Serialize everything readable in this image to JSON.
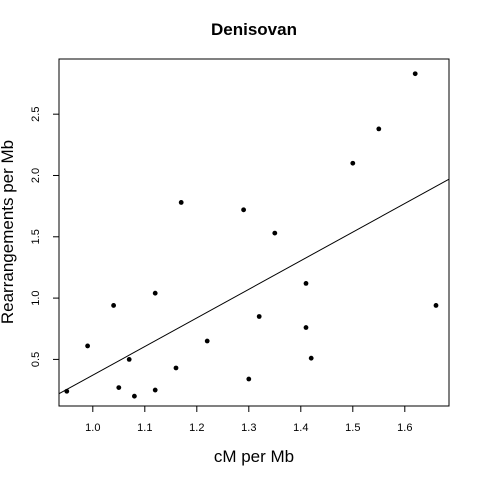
{
  "chart_data": {
    "type": "scatter",
    "title": "Denisovan",
    "xlabel": "cM per Mb",
    "ylabel": "Rearrangements per Mb",
    "xlim": [
      0.935,
      1.685
    ],
    "ylim": [
      0.12,
      2.95
    ],
    "x_ticks": [
      1.0,
      1.1,
      1.2,
      1.3,
      1.4,
      1.5,
      1.6
    ],
    "x_tick_labels": [
      "1.0",
      "1.1",
      "1.2",
      "1.3",
      "1.4",
      "1.5",
      "1.6"
    ],
    "y_ticks": [
      0.5,
      1.0,
      1.5,
      2.0,
      2.5
    ],
    "y_tick_labels": [
      "0.5",
      "1.0",
      "1.5",
      "2.0",
      "2.5"
    ],
    "grid": false,
    "points": [
      {
        "x": 0.95,
        "y": 0.24
      },
      {
        "x": 0.99,
        "y": 0.61
      },
      {
        "x": 1.04,
        "y": 0.94
      },
      {
        "x": 1.05,
        "y": 0.27
      },
      {
        "x": 1.07,
        "y": 0.5
      },
      {
        "x": 1.08,
        "y": 0.2
      },
      {
        "x": 1.12,
        "y": 1.04
      },
      {
        "x": 1.12,
        "y": 0.25
      },
      {
        "x": 1.16,
        "y": 0.43
      },
      {
        "x": 1.17,
        "y": 1.78
      },
      {
        "x": 1.22,
        "y": 0.65
      },
      {
        "x": 1.29,
        "y": 1.72
      },
      {
        "x": 1.3,
        "y": 0.34
      },
      {
        "x": 1.32,
        "y": 0.85
      },
      {
        "x": 1.35,
        "y": 1.53
      },
      {
        "x": 1.41,
        "y": 1.12
      },
      {
        "x": 1.41,
        "y": 0.76
      },
      {
        "x": 1.42,
        "y": 0.51
      },
      {
        "x": 1.5,
        "y": 2.1
      },
      {
        "x": 1.55,
        "y": 2.38
      },
      {
        "x": 1.62,
        "y": 2.83
      },
      {
        "x": 1.66,
        "y": 0.94
      }
    ],
    "regression_line": {
      "x": [
        0.935,
        1.685
      ],
      "y": [
        0.22,
        1.97
      ]
    }
  }
}
